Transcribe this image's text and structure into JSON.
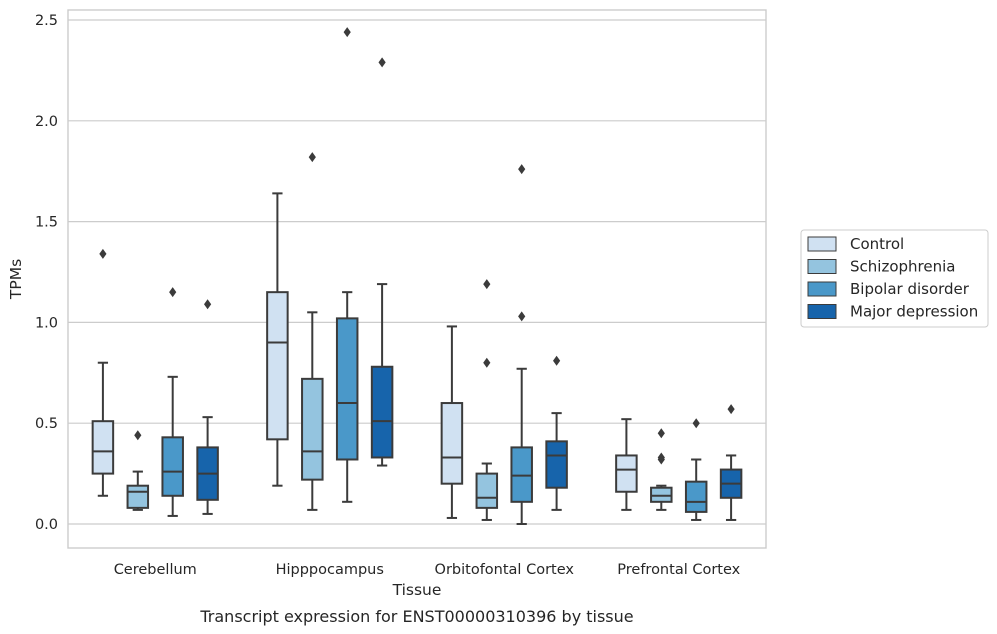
{
  "caption": "Transcript expression for ENST00000310396 by tissue",
  "chart_data": {
    "type": "box",
    "title": "",
    "xlabel": "Tissue",
    "ylabel": "TPMs",
    "ylim": [
      -0.12,
      2.56
    ],
    "yticks": [
      "0.0",
      "0.5",
      "1.0",
      "1.5",
      "2.0",
      "2.5"
    ],
    "ytick_values": [
      0,
      0.5,
      1.0,
      1.5,
      2.0,
      2.5
    ],
    "grid": "horizontal",
    "legend_position": "right",
    "categories": [
      "Cerebellum",
      "Hipppocampus",
      "Orbitofontal Cortex",
      "Prefrontal Cortex"
    ],
    "series": [
      {
        "name": "Control",
        "color": "#d0e1f2",
        "boxes": [
          {
            "whisker_low": 0.14,
            "q1": 0.25,
            "median": 0.36,
            "q3": 0.51,
            "whisker_high": 0.8,
            "outliers": [
              1.34
            ]
          },
          {
            "whisker_low": 0.19,
            "q1": 0.42,
            "median": 0.9,
            "q3": 1.15,
            "whisker_high": 1.64,
            "outliers": []
          },
          {
            "whisker_low": 0.03,
            "q1": 0.2,
            "median": 0.33,
            "q3": 0.6,
            "whisker_high": 0.98,
            "outliers": []
          },
          {
            "whisker_low": 0.07,
            "q1": 0.16,
            "median": 0.27,
            "q3": 0.34,
            "whisker_high": 0.52,
            "outliers": []
          }
        ]
      },
      {
        "name": "Schizophrenia",
        "color": "#94c4df",
        "boxes": [
          {
            "whisker_low": 0.07,
            "q1": 0.08,
            "median": 0.16,
            "q3": 0.19,
            "whisker_high": 0.26,
            "outliers": [
              0.44
            ]
          },
          {
            "whisker_low": 0.07,
            "q1": 0.22,
            "median": 0.36,
            "q3": 0.72,
            "whisker_high": 1.05,
            "outliers": [
              1.82
            ]
          },
          {
            "whisker_low": 0.02,
            "q1": 0.08,
            "median": 0.13,
            "q3": 0.25,
            "whisker_high": 0.3,
            "outliers": [
              0.8,
              1.19
            ]
          },
          {
            "whisker_low": 0.07,
            "q1": 0.11,
            "median": 0.14,
            "q3": 0.18,
            "whisker_high": 0.19,
            "outliers": [
              0.32,
              0.33,
              0.45
            ]
          }
        ]
      },
      {
        "name": "Bipolar disorder",
        "color": "#4a98c9",
        "boxes": [
          {
            "whisker_low": 0.04,
            "q1": 0.14,
            "median": 0.26,
            "q3": 0.43,
            "whisker_high": 0.73,
            "outliers": [
              1.15
            ]
          },
          {
            "whisker_low": 0.11,
            "q1": 0.32,
            "median": 0.6,
            "q3": 1.02,
            "whisker_high": 1.15,
            "outliers": [
              2.44
            ]
          },
          {
            "whisker_low": 0.0,
            "q1": 0.11,
            "median": 0.24,
            "q3": 0.38,
            "whisker_high": 0.77,
            "outliers": [
              1.03,
              1.76
            ]
          },
          {
            "whisker_low": 0.02,
            "q1": 0.06,
            "median": 0.11,
            "q3": 0.21,
            "whisker_high": 0.32,
            "outliers": [
              0.5
            ]
          }
        ]
      },
      {
        "name": "Major depression",
        "color": "#1764ab",
        "boxes": [
          {
            "whisker_low": 0.05,
            "q1": 0.12,
            "median": 0.25,
            "q3": 0.38,
            "whisker_high": 0.53,
            "outliers": [
              1.09
            ]
          },
          {
            "whisker_low": 0.29,
            "q1": 0.33,
            "median": 0.51,
            "q3": 0.78,
            "whisker_high": 1.19,
            "outliers": [
              2.29
            ]
          },
          {
            "whisker_low": 0.07,
            "q1": 0.18,
            "median": 0.34,
            "q3": 0.41,
            "whisker_high": 0.55,
            "outliers": [
              0.81
            ]
          },
          {
            "whisker_low": 0.02,
            "q1": 0.13,
            "median": 0.2,
            "q3": 0.27,
            "whisker_high": 0.34,
            "outliers": [
              0.57
            ]
          }
        ]
      }
    ]
  }
}
